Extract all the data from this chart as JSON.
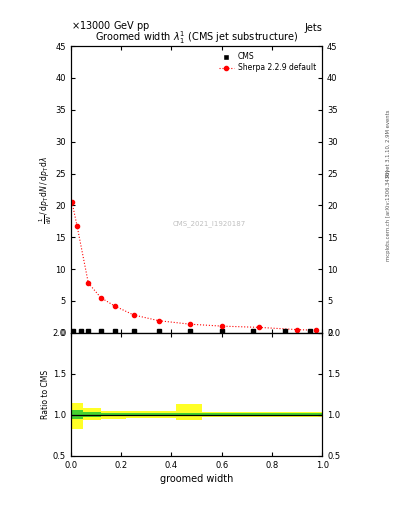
{
  "title": "Groomed width $\\lambda_1^1$ (CMS jet substructure)",
  "header_left": "$\\times$13000 GeV pp",
  "header_right": "Jets",
  "right_label_top": "Rivet 3.1.10, 2.9M events",
  "right_label_bottom": "mcplots.cern.ch [arXiv:1306.3436]",
  "watermark": "CMS_2021_I1920187",
  "xlabel": "groomed width",
  "ylabel_main_line1": "$\\mathrm{d}N$",
  "ylabel_main": "$\\frac{1}{\\mathrm{d}N / \\mathrm{d}p_\\mathrm{T}}\\,\\mathrm{d}N / \\mathrm{d}p_\\mathrm{T}\\,\\mathrm{d}\\lambda$",
  "ylabel_ratio": "Ratio to CMS",
  "ylim_main": [
    0,
    45
  ],
  "ylim_ratio": [
    0.5,
    2.0
  ],
  "yticks_main": [
    0,
    5,
    10,
    15,
    20,
    25,
    30,
    35,
    40,
    45
  ],
  "yticks_ratio": [
    0.5,
    1.0,
    1.5,
    2.0
  ],
  "xlim": [
    0,
    1.0
  ],
  "cms_x": [
    0.01,
    0.04,
    0.07,
    0.12,
    0.175,
    0.25,
    0.35,
    0.475,
    0.6,
    0.725,
    0.85,
    0.95
  ],
  "cms_y": [
    0.3,
    0.3,
    0.3,
    0.3,
    0.3,
    0.3,
    0.3,
    0.3,
    0.3,
    0.3,
    0.3,
    0.3
  ],
  "sherpa_x": [
    0.005,
    0.025,
    0.07,
    0.12,
    0.175,
    0.25,
    0.35,
    0.475,
    0.6,
    0.75,
    0.9,
    0.975
  ],
  "sherpa_y": [
    20.5,
    16.8,
    7.8,
    5.5,
    4.2,
    2.8,
    1.9,
    1.35,
    1.05,
    0.85,
    0.5,
    0.4
  ],
  "cms_color": "#000000",
  "sherpa_color": "#ff0000",
  "ratio_yellow_band_regions": [
    {
      "x": [
        0.0,
        0.05
      ],
      "y": [
        0.82,
        1.14
      ]
    },
    {
      "x": [
        0.05,
        0.12
      ],
      "y": [
        0.93,
        1.08
      ]
    },
    {
      "x": [
        0.12,
        0.22
      ],
      "y": [
        0.95,
        1.05
      ]
    },
    {
      "x": [
        0.22,
        0.42
      ],
      "y": [
        0.96,
        1.04
      ]
    },
    {
      "x": [
        0.42,
        0.52
      ],
      "y": [
        0.93,
        1.13
      ]
    },
    {
      "x": [
        0.52,
        1.0
      ],
      "y": [
        0.97,
        1.03
      ]
    }
  ],
  "ratio_green_band_regions": [
    {
      "x": [
        0.0,
        0.05
      ],
      "y": [
        0.95,
        1.06
      ]
    },
    {
      "x": [
        0.05,
        0.12
      ],
      "y": [
        0.97,
        1.03
      ]
    },
    {
      "x": [
        0.12,
        1.0
      ],
      "y": [
        0.98,
        1.02
      ]
    }
  ]
}
